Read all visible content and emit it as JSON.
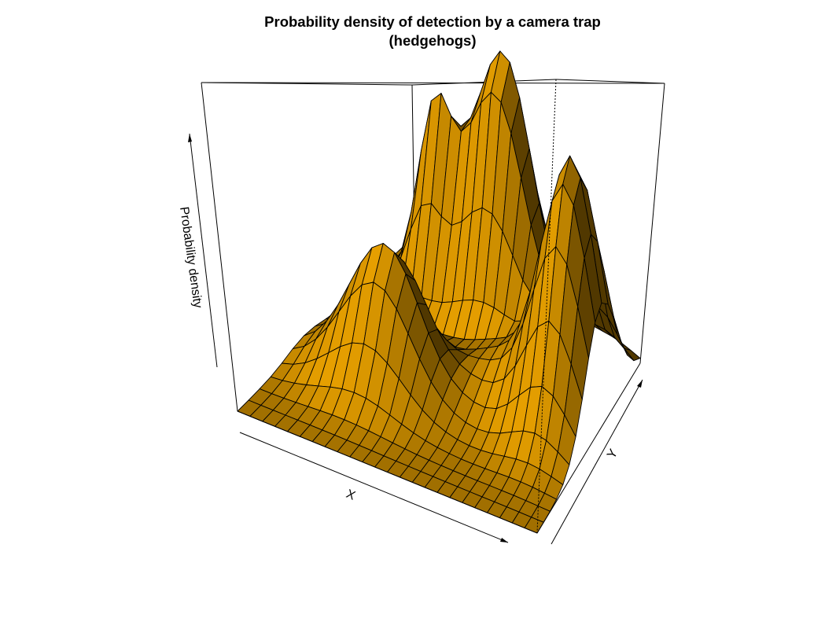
{
  "chart_data": {
    "type": "surface",
    "title": "Probability density of detection by a camera trap",
    "subtitle": "(hedgehogs)",
    "xlabel": "X",
    "ylabel": "Y",
    "zlabel": "Probability density",
    "surface_color": "#E69F00",
    "grid_x_cells": 24,
    "grid_y_cells": 16,
    "peaks_description": [
      {
        "name": "left peak",
        "x": 0.22,
        "y": 0.82,
        "relative_height": 0.59
      },
      {
        "name": "middle ridge",
        "x": 0.3,
        "y": 0.38,
        "relative_height": 0.49
      },
      {
        "name": "back peak",
        "x": 0.47,
        "y": 0.86,
        "relative_height": 0.95
      },
      {
        "name": "right peak",
        "x": 0.88,
        "y": 0.62,
        "relative_height": 0.9
      }
    ],
    "z_profile_back_rows": [
      [
        0.0,
        0.04,
        0.1,
        0.22,
        0.4,
        0.57,
        0.59,
        0.46,
        0.31,
        0.22,
        0.18,
        0.2,
        0.35,
        0.55,
        0.75,
        0.88,
        0.95,
        0.9,
        0.76,
        0.64,
        0.66,
        0.79,
        0.88,
        0.8,
        0.52
      ]
    ]
  }
}
